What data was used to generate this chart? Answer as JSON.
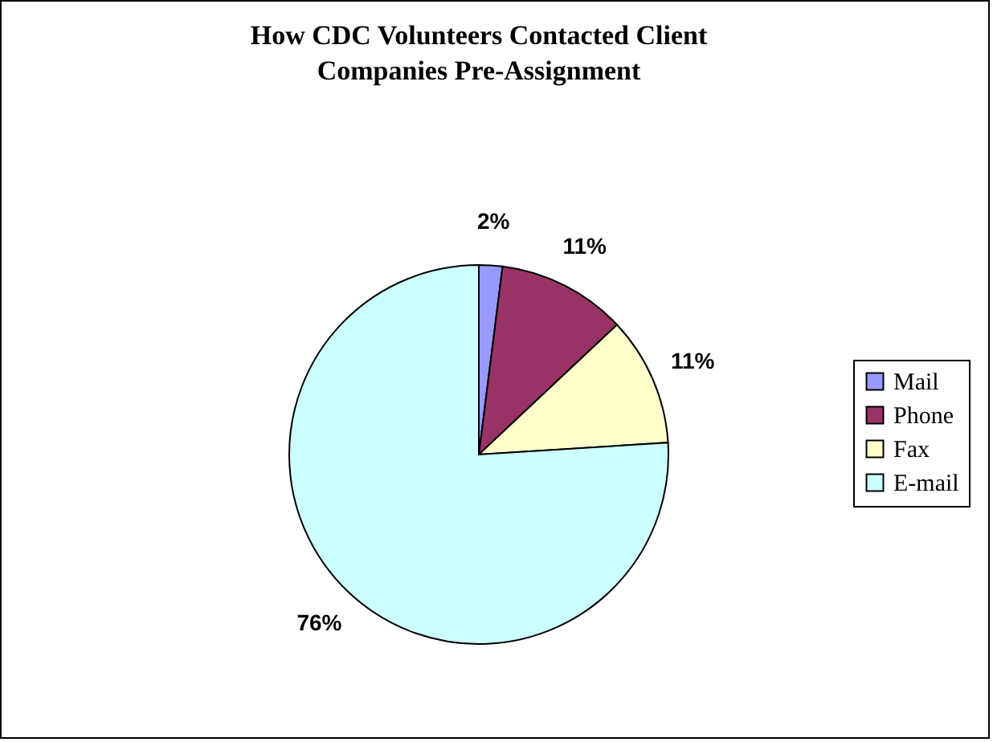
{
  "chart_data": {
    "type": "pie",
    "title": "How CDC Volunteers Contacted Client Companies Pre-Assignment",
    "categories": [
      "Mail",
      "Phone",
      "Fax",
      "E-mail"
    ],
    "values": [
      2,
      11,
      11,
      76
    ],
    "colors": [
      "#9999ff",
      "#993366",
      "#ffffcc",
      "#ccffff"
    ],
    "value_labels": [
      "2%",
      "11%",
      "11%",
      "76%"
    ],
    "legend": "right"
  }
}
